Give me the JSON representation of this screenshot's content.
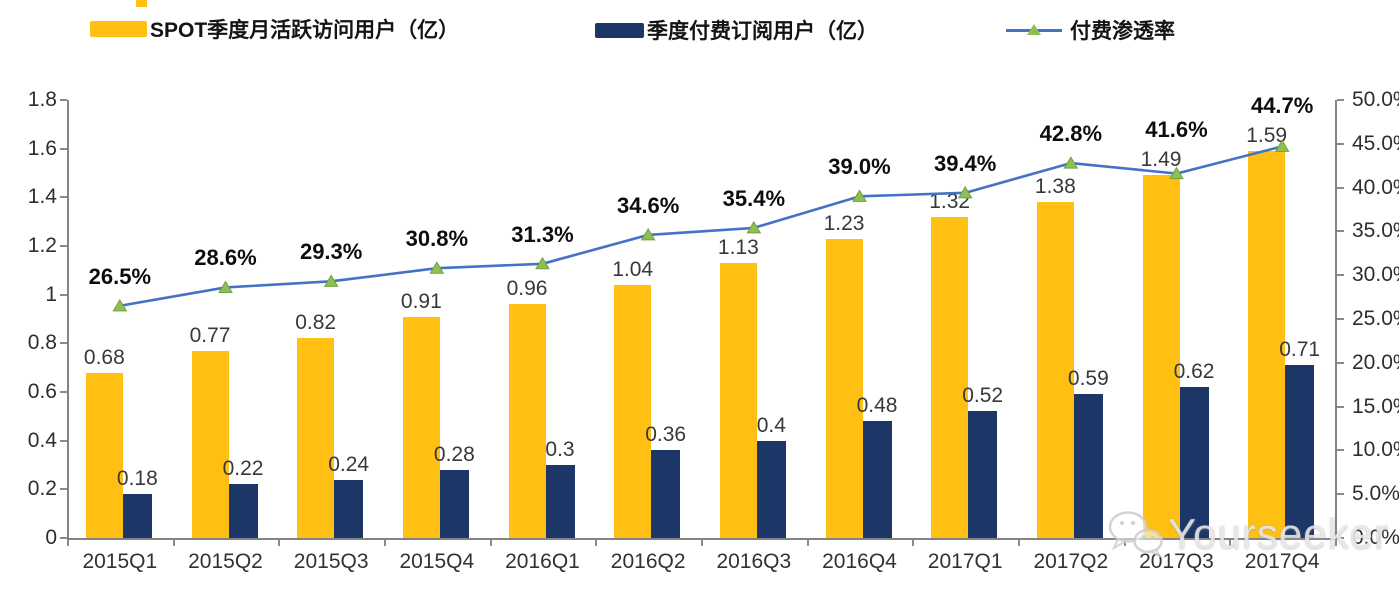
{
  "legend": {
    "items": [
      {
        "label": "SPOT季度月活跃访问用户（亿）",
        "color": "#FFC013",
        "type": "bar"
      },
      {
        "label": "季度付费订阅用户（亿）",
        "color": "#1C3667",
        "type": "bar"
      },
      {
        "label": "付费渗透率",
        "color": "#4472C4",
        "marker_color": "#8FBE53",
        "type": "line"
      }
    ]
  },
  "chart_data": {
    "type": "bar+line combo",
    "categories": [
      "2015Q1",
      "2015Q2",
      "2015Q3",
      "2015Q4",
      "2016Q1",
      "2016Q2",
      "2016Q3",
      "2016Q4",
      "2017Q1",
      "2017Q2",
      "2017Q3",
      "2017Q4"
    ],
    "series": [
      {
        "name": "SPOT季度月活跃访问用户（亿）",
        "type": "bar",
        "axis": "left",
        "color": "#FFC013",
        "values": [
          0.68,
          0.77,
          0.82,
          0.91,
          0.96,
          1.04,
          1.13,
          1.23,
          1.32,
          1.38,
          1.49,
          1.59
        ],
        "labels": [
          "0.68",
          "0.77",
          "0.82",
          "0.91",
          "0.96",
          "1.04",
          "1.13",
          "1.23",
          "1.32",
          "1.38",
          "1.49",
          "1.59"
        ]
      },
      {
        "name": "季度付费订阅用户（亿）",
        "type": "bar",
        "axis": "left",
        "color": "#1C3667",
        "values": [
          0.18,
          0.22,
          0.24,
          0.28,
          0.3,
          0.36,
          0.4,
          0.48,
          0.52,
          0.59,
          0.62,
          0.71
        ],
        "labels": [
          "0.18",
          "0.22",
          "0.24",
          "0.28",
          "0.3",
          "0.36",
          "0.4",
          "0.48",
          "0.52",
          "0.59",
          "0.62",
          "0.71"
        ]
      },
      {
        "name": "付费渗透率",
        "type": "line",
        "axis": "right",
        "color": "#4472C4",
        "marker_color": "#8FBE53",
        "values": [
          26.5,
          28.6,
          29.3,
          30.8,
          31.3,
          34.6,
          35.4,
          39.0,
          39.4,
          42.8,
          41.6,
          44.7
        ],
        "labels": [
          "26.5%",
          "28.6%",
          "29.3%",
          "30.8%",
          "31.3%",
          "34.6%",
          "35.4%",
          "39.0%",
          "39.4%",
          "42.8%",
          "41.6%",
          "44.7%"
        ]
      }
    ],
    "left_axis": {
      "min": 0,
      "max": 1.8,
      "step": 0.2,
      "ticks": [
        "0",
        "0.2",
        "0.4",
        "0.6",
        "0.8",
        "1",
        "1.2",
        "1.4",
        "1.6",
        "1.8"
      ]
    },
    "right_axis": {
      "min": 0,
      "max": 50,
      "step": 5,
      "ticks": [
        "0.0%",
        "5.0%",
        "10.0%",
        "15.0%",
        "20.0%",
        "25.0%",
        "30.0%",
        "35.0%",
        "40.0%",
        "45.0%",
        "50.0%"
      ]
    },
    "grid": false,
    "legend_position": "top"
  },
  "watermark": {
    "text": "Yourseeker",
    "icon": "wechat-icon"
  }
}
